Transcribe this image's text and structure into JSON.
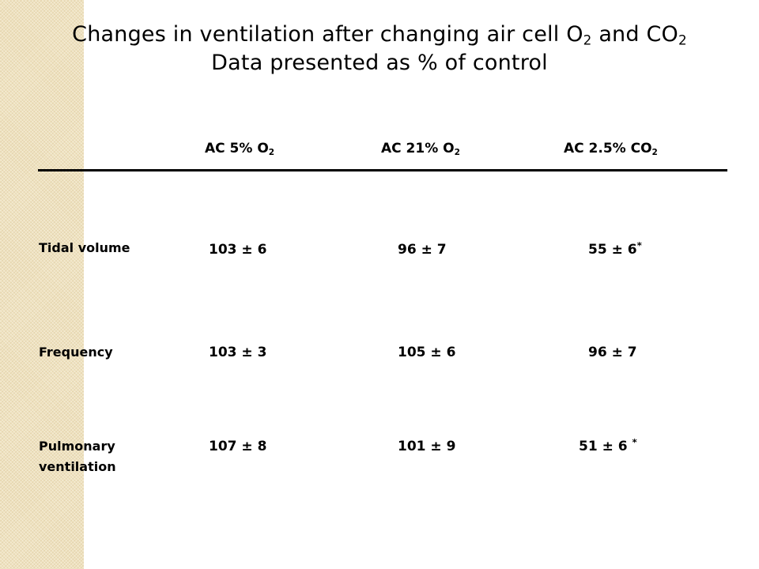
{
  "title": {
    "line1_prefix": "Changes in ventilation after changing air cell O",
    "line1_sub1": "2",
    "line1_mid": " and CO",
    "line1_sub2": "2",
    "line2": "Data presented as % of control"
  },
  "columns": [
    {
      "prefix": "AC 5% O",
      "sub": "2"
    },
    {
      "prefix": "AC 21% O",
      "sub": "2"
    },
    {
      "prefix": "AC 2.5% CO",
      "sub": "2"
    }
  ],
  "rows": [
    {
      "label": "Tidal volume",
      "values": [
        "103 ± 6",
        "96 ± 7",
        "55 ± 6"
      ],
      "marks": [
        "",
        "",
        "*"
      ]
    },
    {
      "label": "Frequency",
      "values": [
        "103 ± 3",
        "105 ± 6",
        "96 ± 7"
      ],
      "marks": [
        "",
        "",
        ""
      ]
    },
    {
      "label": "Pulmonary ventilation",
      "values": [
        "107 ± 8",
        "101 ± 9",
        "51 ± 6 "
      ],
      "marks": [
        "",
        "",
        "*"
      ]
    }
  ],
  "colors": {
    "side_band": "#efe2bf",
    "text": "#000000",
    "background": "#ffffff"
  }
}
